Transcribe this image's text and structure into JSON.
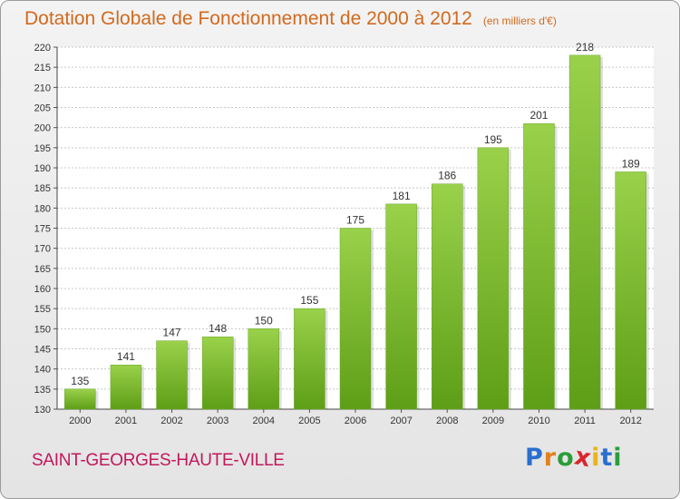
{
  "title": "Dotation Globale de Fonctionnement de 2000 à 2012",
  "unit": "(en milliers d'€)",
  "commune": "SAINT-GEORGES-HAUTE-VILLE",
  "logo": {
    "letters": [
      "P",
      "r",
      "o",
      "x",
      "i",
      "t",
      "i"
    ],
    "colors": [
      "#2a6fcf",
      "#e2811e",
      "#2a9d3a",
      "#d8262c",
      "#e8b41b",
      "#2a6fcf",
      "#2a9d3a"
    ]
  },
  "colors": {
    "title": "#d2691e",
    "commune": "#c2185b",
    "bar_light": "#9ad14b",
    "bar_dark": "#5e9e17",
    "grid": "#c8c8c8"
  },
  "chart_data": {
    "type": "bar",
    "categories": [
      "2000",
      "2001",
      "2002",
      "2003",
      "2004",
      "2005",
      "2006",
      "2007",
      "2008",
      "2009",
      "2010",
      "2011",
      "2012"
    ],
    "values": [
      135,
      141,
      147,
      148,
      150,
      155,
      175,
      181,
      186,
      195,
      201,
      218,
      189
    ],
    "ylim": [
      130,
      220
    ],
    "ytick_step": 5,
    "grid": true,
    "data_labels": true
  }
}
